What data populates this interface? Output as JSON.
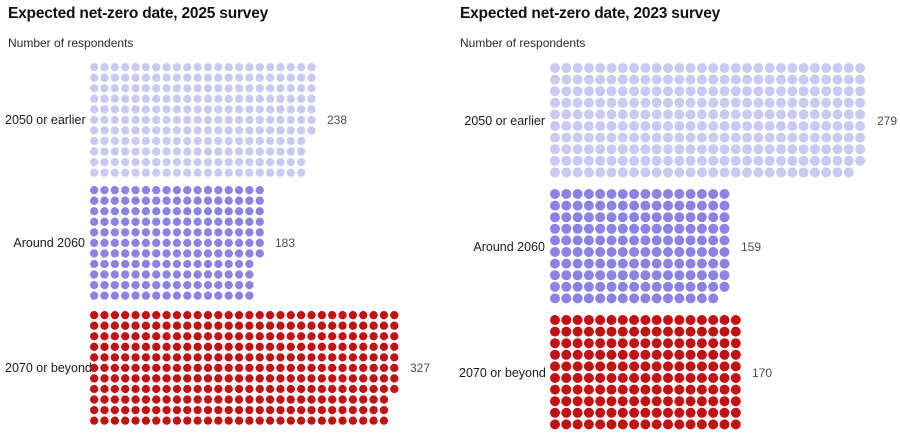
{
  "chart_data": [
    {
      "type": "waffle",
      "title": "Expected net-zero date, 2025 survey",
      "subtitle": "Number of respondents",
      "categories": [
        "2050 or earlier",
        "Around 2060",
        "2070 or beyond"
      ],
      "values": [
        238,
        183,
        327
      ],
      "unit_rows": 11,
      "fill_order": "column-major-top-down",
      "colors": [
        "#c9c9f1",
        "#8c82e4",
        "#c21114"
      ],
      "legend": "none",
      "grid": "off"
    },
    {
      "type": "waffle",
      "title": "Expected net-zero date, 2023 survey",
      "subtitle": "Number of respondents",
      "categories": [
        "2050 or earlier",
        "Around 2060",
        "2070 or beyond"
      ],
      "values": [
        279,
        159,
        170
      ],
      "unit_rows": 10,
      "fill_order": "column-major-top-down",
      "colors": [
        "#c9c9f1",
        "#8c82e4",
        "#c21114"
      ],
      "legend": "none",
      "grid": "off"
    }
  ],
  "text_colors": {
    "title": "#101010",
    "subtitle": "#2b2b2b",
    "category": "#1a1a1a",
    "count": "#4d4d4d"
  }
}
